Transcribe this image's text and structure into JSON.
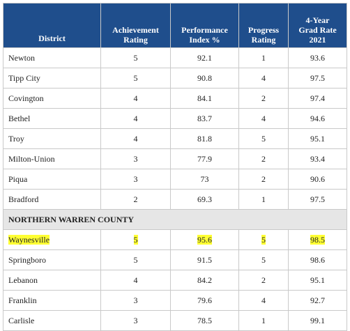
{
  "columns": {
    "district": "District",
    "achievement": [
      "Achievement",
      "Rating"
    ],
    "performance": [
      "Performance",
      "Index %"
    ],
    "progress": [
      "Progress",
      "Rating"
    ],
    "grad": [
      "4-Year",
      "Grad Rate",
      "2021"
    ]
  },
  "rows_top": [
    {
      "district": "Newton",
      "achievement": "5",
      "performance": "92.1",
      "progress": "1",
      "grad": "93.6"
    },
    {
      "district": "Tipp City",
      "achievement": "5",
      "performance": "90.8",
      "progress": "4",
      "grad": "97.5"
    },
    {
      "district": "Covington",
      "achievement": "4",
      "performance": "84.1",
      "progress": "2",
      "grad": "97.4"
    },
    {
      "district": "Bethel",
      "achievement": "4",
      "performance": "83.7",
      "progress": "4",
      "grad": "94.6"
    },
    {
      "district": "Troy",
      "achievement": "4",
      "performance": "81.8",
      "progress": "5",
      "grad": "95.1"
    },
    {
      "district": "Milton-Union",
      "achievement": "3",
      "performance": "77.9",
      "progress": "2",
      "grad": "93.4"
    },
    {
      "district": "Piqua",
      "achievement": "3",
      "performance": "73",
      "progress": "2",
      "grad": "90.6"
    },
    {
      "district": "Bradford",
      "achievement": "2",
      "performance": "69.3",
      "progress": "1",
      "grad": "97.5"
    }
  ],
  "section_label": "NORTHERN WARREN COUNTY",
  "rows_bottom": [
    {
      "district": "Waynesville",
      "achievement": "5",
      "performance": "95.6",
      "progress": "5",
      "grad": "98.5",
      "highlight": true
    },
    {
      "district": "Springboro",
      "achievement": "5",
      "performance": "91.5",
      "progress": "5",
      "grad": "98.6"
    },
    {
      "district": "Lebanon",
      "achievement": "4",
      "performance": "84.2",
      "progress": "2",
      "grad": "95.1"
    },
    {
      "district": "Franklin",
      "achievement": "3",
      "performance": "79.6",
      "progress": "4",
      "grad": "92.7"
    },
    {
      "district": "Carlisle",
      "achievement": "3",
      "performance": "78.5",
      "progress": "1",
      "grad": "99.1"
    }
  ],
  "colors": {
    "header_bg": "#1f4e8c",
    "section_bg": "#e6e6e6",
    "highlight": "#ffff33"
  }
}
